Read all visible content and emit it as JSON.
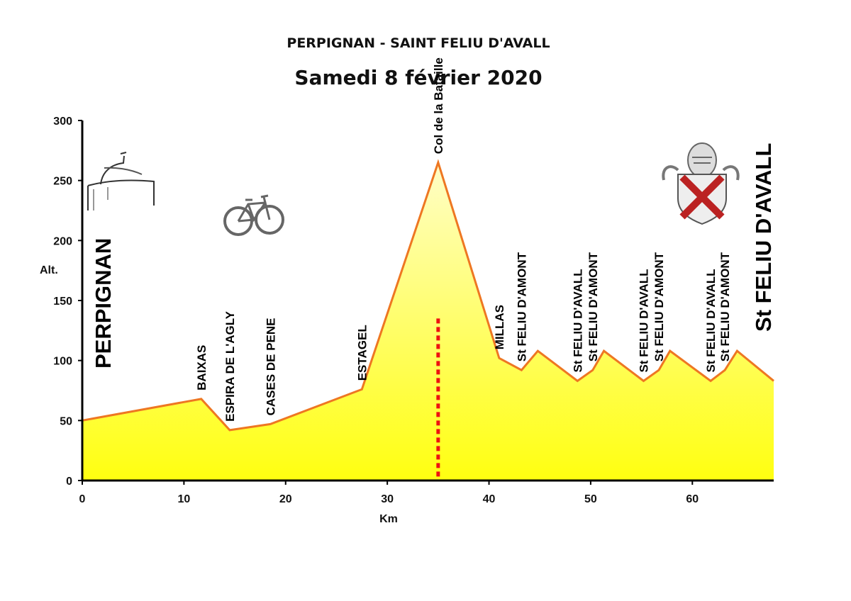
{
  "header": {
    "title": "PERPIGNAN - SAINT FELIU D'AVALL",
    "date": "Samedi 8 février 2020"
  },
  "icons": [
    "perpignan-castillet-icon",
    "bicycle-icon",
    "saint-feliu-coat-of-arms-icon"
  ],
  "colors": {
    "line": "#ee7722",
    "fill_top": "#fffde0",
    "fill_bottom": "#ffff10",
    "col_marker": "#ee1111"
  },
  "chart_data": {
    "type": "area",
    "xlabel": "Km",
    "ylabel": "Alt.",
    "xlim": [
      0,
      68
    ],
    "ylim": [
      0,
      300
    ],
    "x_ticks": [
      0,
      10,
      20,
      30,
      40,
      50,
      60
    ],
    "y_ticks": [
      0,
      50,
      100,
      150,
      200,
      250,
      300
    ],
    "grid": false,
    "x": [
      0,
      11.7,
      14.5,
      18.5,
      27.5,
      35,
      41,
      43.2,
      44.8,
      48.7,
      50.2,
      51.3,
      55.2,
      56.7,
      57.8,
      61.8,
      63.2,
      64.4,
      68
    ],
    "y": [
      50,
      68,
      42,
      47,
      76,
      265,
      102,
      92,
      108,
      83,
      92,
      108,
      83,
      92,
      108,
      83,
      92,
      108,
      83
    ],
    "start_label": "PERPIGNAN",
    "end_label": "St FELIU D'AVALL",
    "col_marker_km": 35,
    "col_marker_alt": 135,
    "waypoints": [
      {
        "label": "BAIXAS",
        "km": 11.7,
        "alt": 68
      },
      {
        "label": "ESPIRA DE L'AGLY",
        "km": 14.5,
        "alt": 42
      },
      {
        "label": "CASES DE PENE",
        "km": 18.5,
        "alt": 47
      },
      {
        "label": "ESTAGEL",
        "km": 27.5,
        "alt": 76
      },
      {
        "label": "Col de la Bataille",
        "km": 35,
        "alt": 265
      },
      {
        "label": "MILLAS",
        "km": 41,
        "alt": 102
      },
      {
        "label": "St FELIU D'AMONT",
        "km": 43.2,
        "alt": 92
      },
      {
        "label": "St FELIU D'AVALL",
        "km": 48.7,
        "alt": 83
      },
      {
        "label": "St FELIU D'AMONT",
        "km": 50.2,
        "alt": 92
      },
      {
        "label": "St FELIU D'AVALL",
        "km": 55.2,
        "alt": 83
      },
      {
        "label": "St FELIU D'AMONT",
        "km": 56.7,
        "alt": 92
      },
      {
        "label": "St FELIU D'AVALL",
        "km": 61.8,
        "alt": 83
      },
      {
        "label": "St FELIU D'AMONT",
        "km": 63.2,
        "alt": 92
      }
    ]
  }
}
